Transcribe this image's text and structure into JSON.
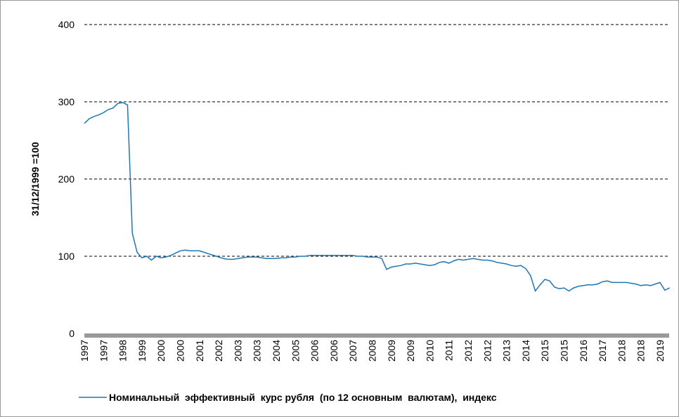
{
  "chart_data": {
    "type": "line",
    "y_label": "31/12/1999 =100",
    "categories": [
      "1997",
      null,
      null,
      null,
      "1997",
      null,
      null,
      null,
      "1998",
      null,
      null,
      null,
      "1999",
      null,
      null,
      null,
      "2000",
      null,
      null,
      null,
      "2000",
      null,
      null,
      null,
      "2001",
      null,
      null,
      null,
      "2002",
      null,
      null,
      null,
      "2003",
      null,
      null,
      null,
      "2003",
      null,
      null,
      null,
      "2004",
      null,
      null,
      null,
      "2005",
      null,
      null,
      null,
      "2006",
      null,
      null,
      null,
      "2006",
      null,
      null,
      null,
      "2007",
      null,
      null,
      null,
      "2008",
      null,
      null,
      null,
      "2009",
      null,
      null,
      null,
      "2009",
      null,
      null,
      null,
      "2010",
      null,
      null,
      null,
      "2011",
      null,
      null,
      null,
      "2012",
      null,
      null,
      null,
      "2012",
      null,
      null,
      null,
      "2013",
      null,
      null,
      null,
      "2014",
      null,
      null,
      null,
      "2015",
      null,
      null,
      null,
      "2015",
      null,
      null,
      null,
      "2016",
      null,
      null,
      null,
      "2017",
      null,
      null,
      null,
      "2018",
      null,
      null,
      null,
      "2018",
      null,
      null,
      null,
      "2019",
      null,
      null
    ],
    "series": [
      {
        "name": "Номинальный  эффективный  курс рубля  (по 12 основным  валютам),  индекс",
        "color": "#1f77b4",
        "values": [
          272,
          278,
          281,
          283,
          286,
          290,
          292,
          298,
          299,
          296,
          130,
          105,
          98,
          100,
          95,
          100,
          98,
          99,
          101,
          104,
          107,
          108,
          107,
          107,
          107,
          105,
          103,
          101,
          99,
          97,
          96,
          96,
          97,
          98,
          99,
          99,
          99,
          98,
          97,
          97,
          97,
          98,
          98,
          99,
          99,
          100,
          100,
          101,
          101,
          101,
          101,
          101,
          101,
          101,
          101,
          101,
          101,
          100,
          100,
          99,
          99,
          99,
          97,
          83,
          86,
          87,
          88,
          90,
          90,
          91,
          90,
          89,
          88,
          89,
          92,
          93,
          91,
          94,
          96,
          95,
          96,
          97,
          96,
          95,
          95,
          94,
          92,
          91,
          90,
          88,
          87,
          88,
          84,
          75,
          55,
          63,
          70,
          68,
          60,
          58,
          59,
          55,
          59,
          61,
          62,
          63,
          63,
          64,
          67,
          68,
          66,
          66,
          66,
          66,
          65,
          64,
          62,
          63,
          62,
          64,
          66,
          56,
          59
        ]
      }
    ],
    "ylim": [
      0,
      400
    ],
    "yticks": [
      0,
      100,
      200,
      300,
      400
    ],
    "grid": true,
    "legend": "bottom"
  }
}
